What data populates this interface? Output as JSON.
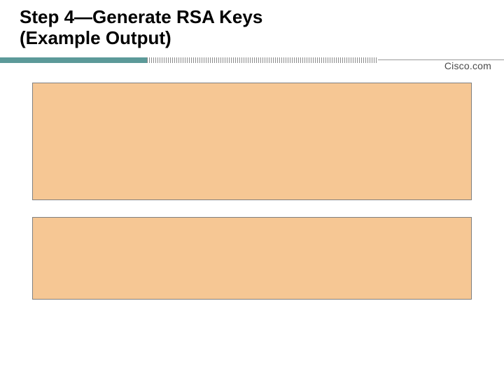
{
  "title": {
    "line1": "Step 4—Generate RSA Keys",
    "line2": "(Example Output)"
  },
  "brand": "Cisco.com",
  "divider": {
    "solid_color": "#5c9a99",
    "stripe_dark": "#8a8a8a",
    "stripe_light": "#ffffff",
    "line_color": "#9a9a9a"
  },
  "boxes": {
    "box1": {
      "background": "#f6c794",
      "border": "#808080",
      "content": ""
    },
    "box2": {
      "background": "#f6c794",
      "border": "#808080",
      "content": ""
    }
  }
}
